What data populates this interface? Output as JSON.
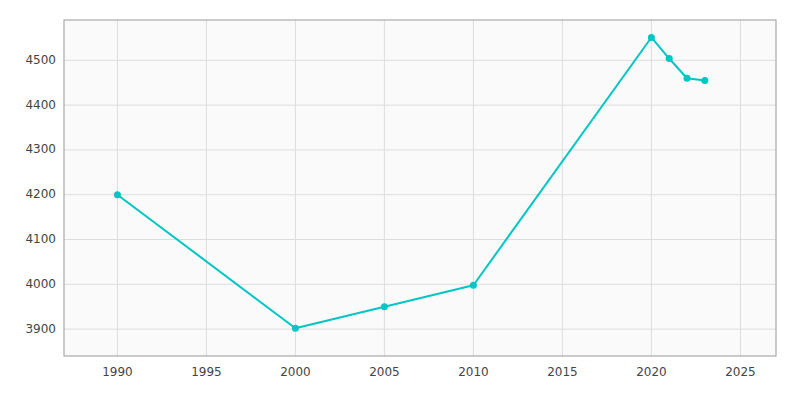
{
  "chart_data": {
    "type": "line",
    "x": [
      1990,
      2000,
      2005,
      2010,
      2020,
      2021,
      2022,
      2023
    ],
    "values": [
      4200,
      3902,
      3950,
      3998,
      4551,
      4504,
      4460,
      4455
    ],
    "color": "#00C5C5",
    "marker": "circle",
    "xlim": [
      1987,
      2027
    ],
    "ylim": [
      3840,
      4590
    ],
    "xticks": [
      1990,
      1995,
      2000,
      2005,
      2010,
      2015,
      2020,
      2025
    ],
    "yticks": [
      3900,
      4000,
      4100,
      4200,
      4300,
      4400,
      4500
    ],
    "grid": true
  }
}
